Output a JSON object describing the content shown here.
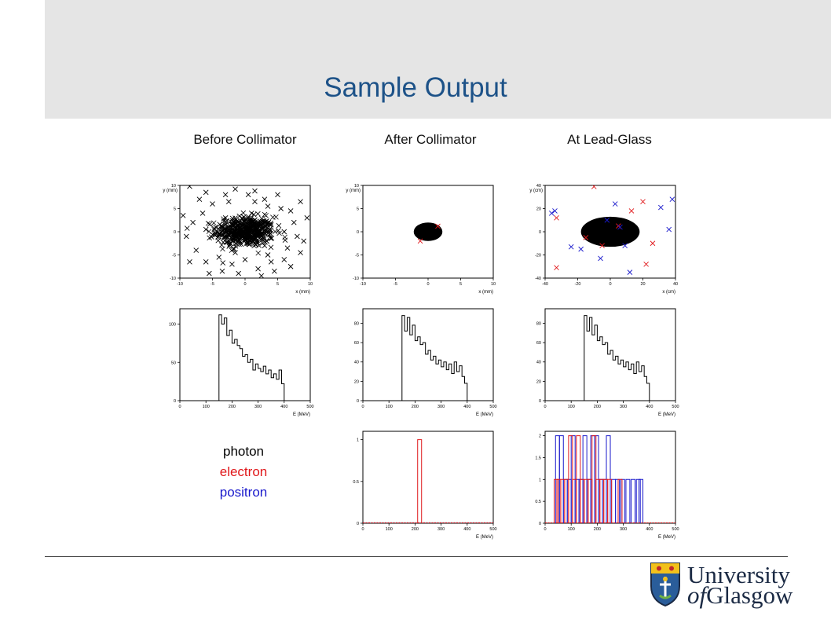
{
  "slide": {
    "title": "Sample Output",
    "columns": [
      "Before Collimator",
      "After Collimator",
      "At Lead-Glass"
    ],
    "legend": [
      {
        "label": "photon",
        "color": "#000000"
      },
      {
        "label": "electron",
        "color": "#e0181b"
      },
      {
        "label": "positron",
        "color": "#1a1acc"
      }
    ],
    "logo": {
      "line1": "University",
      "line2_of": "of",
      "line2_rest": "Glasgow"
    }
  },
  "chart_data": [
    {
      "type": "scatter",
      "panel": "before-collimator-xy",
      "xlabel": "x (mm)",
      "ylabel": "y (mm)",
      "xlim": [
        -10,
        10
      ],
      "ylim": [
        -10,
        10
      ],
      "xticks": [
        -10,
        -5,
        0,
        5,
        10
      ],
      "yticks": [
        -10,
        -5,
        0,
        5,
        10
      ],
      "marker": "x",
      "cluster": {
        "center": [
          0,
          0
        ],
        "spread": [
          2.2,
          1.6
        ],
        "color": "#000000"
      },
      "series": [
        {
          "color": "#000000",
          "points": [
            [
              -8.5,
              9.8
            ],
            [
              -6,
              8.5
            ],
            [
              -1.5,
              9.2
            ],
            [
              1.5,
              8.8
            ],
            [
              -5,
              6
            ],
            [
              3,
              7
            ],
            [
              5.5,
              5
            ],
            [
              7,
              4.5
            ],
            [
              8.5,
              6.5
            ],
            [
              -8,
              2
            ],
            [
              -9,
              -1
            ],
            [
              -7.5,
              -4
            ],
            [
              -6,
              -6.5
            ],
            [
              -3.5,
              -8.5
            ],
            [
              -1,
              -9
            ],
            [
              2,
              -8
            ],
            [
              4,
              -6.5
            ],
            [
              6.5,
              -3.5
            ],
            [
              8,
              -1
            ],
            [
              9,
              -2
            ],
            [
              7.5,
              2
            ],
            [
              -4,
              -5.5
            ],
            [
              3.5,
              5.5
            ],
            [
              -2.5,
              6.5
            ],
            [
              0.5,
              8
            ],
            [
              -6.5,
              4
            ],
            [
              6,
              -6
            ],
            [
              8.5,
              -4.5
            ],
            [
              -8.5,
              -6.5
            ],
            [
              2.5,
              -9.5
            ],
            [
              -7,
              7
            ],
            [
              5,
              8
            ],
            [
              9.5,
              3
            ],
            [
              -9.5,
              3.5
            ],
            [
              4.5,
              -8.5
            ],
            [
              -5.5,
              -9
            ],
            [
              7,
              -7.5
            ],
            [
              -3,
              3
            ],
            [
              3,
              -3
            ],
            [
              1,
              4
            ],
            [
              -1.5,
              -4.5
            ],
            [
              4,
              1.5
            ],
            [
              -4.5,
              1
            ],
            [
              0,
              -6
            ],
            [
              -2,
              -7
            ],
            [
              6,
              0
            ],
            [
              -6,
              0.5
            ],
            [
              1.5,
              6.5
            ],
            [
              -3,
              8
            ],
            [
              3.5,
              -5
            ]
          ]
        }
      ]
    },
    {
      "type": "scatter",
      "panel": "after-collimator-xy",
      "xlabel": "x (mm)",
      "ylabel": "y (mm)",
      "xlim": [
        -10,
        10
      ],
      "ylim": [
        -10,
        10
      ],
      "xticks": [
        -10,
        -5,
        0,
        5,
        10
      ],
      "yticks": [
        -10,
        -5,
        0,
        5,
        10
      ],
      "marker": "x",
      "cluster": {
        "center": [
          0,
          0
        ],
        "radius": [
          2.2,
          2.0
        ],
        "color": "#000000"
      },
      "series": [
        {
          "color": "#e0181b",
          "points": [
            [
              -1.2,
              -2.0
            ],
            [
              1.5,
              1.2
            ]
          ]
        }
      ]
    },
    {
      "type": "scatter",
      "panel": "lead-glass-xy",
      "xlabel": "x (cm)",
      "ylabel": "y (cm)",
      "xlim": [
        -40,
        40
      ],
      "ylim": [
        -40,
        40
      ],
      "xticks": [
        -40,
        -20,
        0,
        20,
        40
      ],
      "yticks": [
        -40,
        -20,
        0,
        20,
        40
      ],
      "marker": "x",
      "cluster": {
        "center": [
          0,
          0
        ],
        "radius": [
          18,
          13
        ],
        "color": "#000000"
      },
      "series": [
        {
          "color": "#e0181b",
          "points": [
            [
              -10,
              39
            ],
            [
              20,
              26
            ],
            [
              13,
              18
            ],
            [
              -33,
              12
            ],
            [
              -33,
              -31
            ],
            [
              26,
              -10
            ],
            [
              22,
              -28
            ],
            [
              -15,
              -5
            ],
            [
              5,
              5
            ],
            [
              -5,
              -12
            ]
          ]
        },
        {
          "color": "#1a1acc",
          "points": [
            [
              -36,
              16
            ],
            [
              -34,
              18
            ],
            [
              3,
              24
            ],
            [
              31,
              21
            ],
            [
              -24,
              -13
            ],
            [
              -18,
              -15
            ],
            [
              -6,
              -23
            ],
            [
              12,
              -35
            ],
            [
              38,
              28
            ],
            [
              9,
              -12
            ],
            [
              6,
              4
            ],
            [
              -2,
              10
            ],
            [
              36,
              2
            ]
          ]
        }
      ]
    },
    {
      "type": "histogram",
      "panel": "before-collimator-energy",
      "xlabel": "E (MeV)",
      "xlim": [
        0,
        500
      ],
      "ylim": [
        0,
        120
      ],
      "xticks": [
        0,
        100,
        200,
        300,
        400,
        500
      ],
      "yticks": [
        0,
        50,
        100
      ],
      "series": [
        {
          "color": "#000000",
          "bins": [
            [
              150,
              112
            ],
            [
              160,
              100
            ],
            [
              170,
              108
            ],
            [
              180,
              85
            ],
            [
              190,
              92
            ],
            [
              200,
              75
            ],
            [
              210,
              80
            ],
            [
              220,
              72
            ],
            [
              230,
              68
            ],
            [
              240,
              58
            ],
            [
              250,
              60
            ],
            [
              260,
              50
            ],
            [
              270,
              54
            ],
            [
              280,
              40
            ],
            [
              290,
              48
            ],
            [
              300,
              42
            ],
            [
              310,
              38
            ],
            [
              320,
              45
            ],
            [
              330,
              35
            ],
            [
              340,
              40
            ],
            [
              350,
              30
            ],
            [
              360,
              35
            ],
            [
              370,
              28
            ],
            [
              380,
              40
            ],
            [
              390,
              22
            ],
            [
              400,
              0
            ]
          ]
        }
      ]
    },
    {
      "type": "histogram",
      "panel": "after-collimator-energy",
      "xlabel": "E (MeV)",
      "xlim": [
        0,
        500
      ],
      "ylim": [
        0,
        95
      ],
      "xticks": [
        0,
        100,
        200,
        300,
        400,
        500
      ],
      "yticks": [
        0,
        20,
        40,
        60,
        80
      ],
      "series": [
        {
          "color": "#000000",
          "bins": [
            [
              150,
              88
            ],
            [
              160,
              72
            ],
            [
              170,
              86
            ],
            [
              180,
              68
            ],
            [
              190,
              78
            ],
            [
              200,
              62
            ],
            [
              210,
              66
            ],
            [
              220,
              58
            ],
            [
              230,
              60
            ],
            [
              240,
              48
            ],
            [
              250,
              52
            ],
            [
              260,
              42
            ],
            [
              270,
              46
            ],
            [
              280,
              38
            ],
            [
              290,
              42
            ],
            [
              300,
              35
            ],
            [
              310,
              40
            ],
            [
              320,
              32
            ],
            [
              330,
              38
            ],
            [
              340,
              28
            ],
            [
              350,
              40
            ],
            [
              360,
              30
            ],
            [
              370,
              36
            ],
            [
              380,
              25
            ],
            [
              390,
              18
            ],
            [
              400,
              0
            ]
          ]
        }
      ]
    },
    {
      "type": "histogram",
      "panel": "lead-glass-energy",
      "xlabel": "E (MeV)",
      "xlim": [
        0,
        500
      ],
      "ylim": [
        0,
        95
      ],
      "xticks": [
        0,
        100,
        200,
        300,
        400,
        500
      ],
      "yticks": [
        0,
        20,
        40,
        60,
        80
      ],
      "series": [
        {
          "color": "#000000",
          "bins": [
            [
              150,
              88
            ],
            [
              160,
              72
            ],
            [
              170,
              86
            ],
            [
              180,
              68
            ],
            [
              190,
              78
            ],
            [
              200,
              62
            ],
            [
              210,
              66
            ],
            [
              220,
              58
            ],
            [
              230,
              60
            ],
            [
              240,
              48
            ],
            [
              250,
              52
            ],
            [
              260,
              42
            ],
            [
              270,
              46
            ],
            [
              280,
              38
            ],
            [
              290,
              42
            ],
            [
              300,
              35
            ],
            [
              310,
              40
            ],
            [
              320,
              32
            ],
            [
              330,
              38
            ],
            [
              340,
              28
            ],
            [
              350,
              40
            ],
            [
              360,
              30
            ],
            [
              370,
              36
            ],
            [
              380,
              25
            ],
            [
              390,
              18
            ],
            [
              400,
              0
            ]
          ]
        }
      ]
    },
    {
      "type": "histogram",
      "panel": "after-collimator-charged-energy",
      "xlabel": "E (MeV)",
      "xlim": [
        0,
        500
      ],
      "ylim": [
        0,
        1.1
      ],
      "xticks": [
        0,
        100,
        200,
        300,
        400,
        500
      ],
      "yticks": [
        0,
        0.5,
        1.0
      ],
      "series": [
        {
          "color": "#1a1acc",
          "bins": []
        },
        {
          "color": "#e0181b",
          "bins": [
            [
              210,
              1
            ]
          ]
        }
      ]
    },
    {
      "type": "histogram",
      "panel": "lead-glass-charged-energy",
      "xlabel": "E (MeV)",
      "xlim": [
        0,
        500
      ],
      "ylim": [
        0,
        2.1
      ],
      "xticks": [
        0,
        100,
        200,
        300,
        400,
        500
      ],
      "yticks": [
        0,
        0.5,
        1.0,
        1.5,
        2.0
      ],
      "series": [
        {
          "color": "#1a1acc",
          "bins": [
            [
              40,
              2
            ],
            [
              55,
              2
            ],
            [
              70,
              1
            ],
            [
              85,
              1
            ],
            [
              100,
              2
            ],
            [
              115,
              1
            ],
            [
              130,
              1
            ],
            [
              145,
              2
            ],
            [
              160,
              1
            ],
            [
              175,
              2
            ],
            [
              190,
              2
            ],
            [
              205,
              1
            ],
            [
              220,
              1
            ],
            [
              235,
              2
            ],
            [
              255,
              1
            ],
            [
              270,
              1
            ],
            [
              290,
              1
            ],
            [
              310,
              1
            ],
            [
              330,
              1
            ],
            [
              350,
              1
            ],
            [
              360,
              1
            ]
          ]
        },
        {
          "color": "#e0181b",
          "bins": [
            [
              35,
              1
            ],
            [
              45,
              1
            ],
            [
              60,
              1
            ],
            [
              75,
              1
            ],
            [
              90,
              2
            ],
            [
              105,
              1
            ],
            [
              120,
              2
            ],
            [
              135,
              1
            ],
            [
              150,
              1
            ],
            [
              165,
              1
            ],
            [
              180,
              2
            ],
            [
              195,
              1
            ],
            [
              210,
              1
            ],
            [
              225,
              1
            ],
            [
              240,
              1
            ],
            [
              280,
              1
            ]
          ]
        }
      ]
    }
  ]
}
